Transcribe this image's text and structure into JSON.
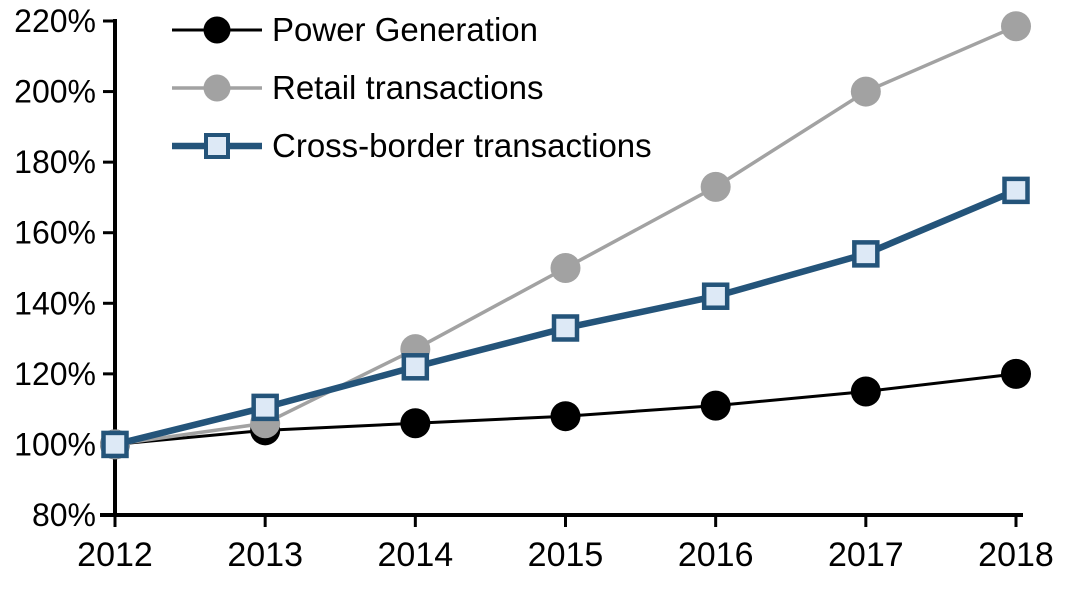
{
  "chart_data": {
    "type": "line",
    "title": "",
    "xlabel": "",
    "ylabel": "",
    "x_labels": [
      "2012",
      "2013",
      "2014",
      "2015",
      "2016",
      "2017",
      "2018"
    ],
    "y_tick_labels": [
      "80%",
      "100%",
      "120%",
      "140%",
      "160%",
      "180%",
      "200%",
      "220%"
    ],
    "ylim": [
      80,
      220
    ],
    "ytick_step": 20,
    "grid": false,
    "legend_position": "top-left",
    "background_color": "#FFFFFF",
    "axis_color": "#000000",
    "series": [
      {
        "name": "Power Generation",
        "marker": "circle",
        "color": "#000000",
        "marker_fill": "#000000",
        "line_width": 3,
        "values": [
          100,
          104,
          106,
          108,
          111,
          115,
          120
        ]
      },
      {
        "name": "Retail transactions",
        "marker": "circle",
        "color": "#A2A2A2",
        "marker_fill": "#A2A2A2",
        "line_width": 3.5,
        "values": [
          100,
          106,
          127,
          150,
          173,
          200,
          218.5
        ]
      },
      {
        "name": "Cross-border transactions",
        "marker": "square",
        "color": "#24547A",
        "marker_fill": "#DDE9F6",
        "line_width": 6.5,
        "values": [
          100,
          110.5,
          122,
          133,
          142,
          154,
          172
        ]
      }
    ]
  }
}
